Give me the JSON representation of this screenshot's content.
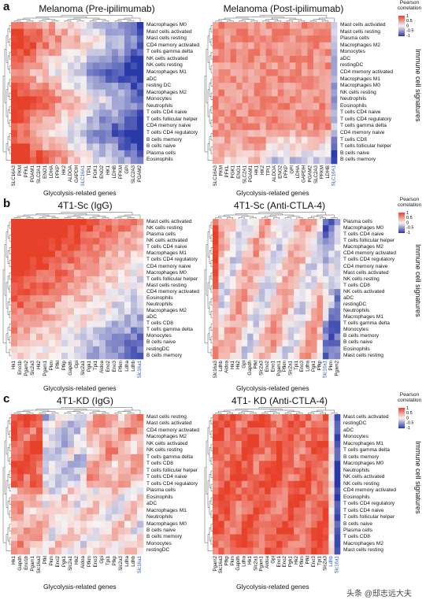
{
  "legend": {
    "title": "Pearson correlation",
    "ticks": [
      "1",
      "0.5",
      "0",
      "-0.5",
      "-1"
    ]
  },
  "side_label": "Immune cell signatures",
  "x_label": "Glycolysis-related genes",
  "watermark": "头条 @邸志远大夫",
  "colors": {
    "high": "#e8412a",
    "mid": "#f7f2f2",
    "low": "#2a39a8"
  },
  "panels": [
    {
      "letter": "a",
      "left": {
        "title": "Melanoma (Pre-ipilimumab)",
        "rows": [
          "Macrophages M0",
          "Mast cells activated",
          "Mast cells resting",
          "CD4 memory activated",
          "T cells gamma delta",
          "NK cells activated",
          "NK cells resting",
          "Macrophages M1",
          "aDC",
          "resting DC",
          "Macrophages M2",
          "Monocytes",
          "Neutrophils",
          "T cells CD4 naive",
          "T cells follicular helper",
          "CD4 memory naive",
          "T cells CD4 regulatory",
          "B cells memory",
          "B cells naive",
          "Plasma cells",
          "Eosinophils"
        ],
        "cols": [
          "SLC16A3",
          "PKM",
          "PFKL",
          "PGAM1",
          "SLC2A1",
          "ENO1",
          "LDHA",
          "PFKP",
          "HK2",
          "ALDOA",
          "GAPDH",
          "SLC16A1",
          "TPI1",
          "PGK1",
          "ENO2",
          "HK1",
          "LDHB",
          "PFKM",
          "GPI",
          "SLC2A3",
          "PGAM2"
        ]
      },
      "right": {
        "title": "Melanoma (Post-ipilimumab)",
        "rows": [
          "Mast cells activated",
          "Mast cells resting",
          "Plasma cells",
          "Macrophages M2",
          "Monocytes",
          "aDC",
          "restingDC",
          "CD4 memory activated",
          "Macrophages M1",
          "Macrophages M0",
          "NK cells resting",
          "Neutrophils",
          "Eosinophils",
          "T cells CD4 naive",
          "T cells CD4 regulatory",
          "T cells gamma delta",
          "CD4 memory naive",
          "T cells CD8",
          "T cells follicular helper",
          "B cells naive",
          "B cells memory"
        ],
        "cols": [
          "SLC16A3",
          "PKM",
          "PFKL",
          "PGK1",
          "ENO1",
          "SLC2A1",
          "PGAM1",
          "HK1",
          "HK2",
          "TPI1",
          "ALDOA",
          "ENO2",
          "PFKP",
          "GPI",
          "LDHA",
          "GAPDH",
          "PGAM2",
          "SLC2A3",
          "PFKM",
          "LDHB",
          "SLC16A1"
        ]
      },
      "ylim_note": ""
    },
    {
      "letter": "b",
      "left": {
        "title": "4T1-Sc (IgG)",
        "rows": [
          "Mast cells activated",
          "NK cells resting",
          "Plasma cells",
          "NK cells activated",
          "T cells CD4 naive",
          "Macrophages M1",
          "T cells CD4 regulatory",
          "CD4 memory naive",
          "Macrophages M0",
          "T cells follicular helper",
          "Mast cells resting",
          "CD4 memory activated",
          "Eosinophils",
          "Neutrophils",
          "Macrophages M2",
          "aDC",
          "T cells CD8",
          "T cells gamma delta",
          "Monocytes",
          "B cells naive",
          "restingDC",
          "B cells memory"
        ],
        "cols": [
          "Hk1",
          "Eno1b",
          "Pgam2",
          "Slc2a3",
          "Hk2",
          "Pgam1",
          "Pkm",
          "Pfkl",
          "Pfkp",
          "Gapdh",
          "Gpi",
          "Slc2a1",
          "Pgk1",
          "Tpi1",
          "Aldoa",
          "Eno2",
          "Eno3",
          "Pfkm",
          "Ldha",
          "Ldhb",
          "Slc16a1"
        ]
      },
      "right": {
        "title": "4T1-Sc (Anti-CTLA-4)",
        "rows": [
          "Plasma cells",
          "Macrophages M0",
          "T cells CD4 naive",
          "T cells follicular helper",
          "Macrophages M2",
          "CD4 memory activated",
          "T cells CD4 regulatory",
          "CD4 memory naive",
          "Mast cells activated",
          "NK cells resting",
          "T cells CD8",
          "NK cells activated",
          "aDC",
          "restingDC",
          "Neutrophils",
          "Macrophages M1",
          "T cells gamma delta",
          "Monocytes",
          "B cells memory",
          "B cells naive",
          "Eosinophils",
          "Mast cells resting"
        ],
        "cols": [
          "Slc16a3",
          "Ldhb",
          "Aldoa",
          "Hk1",
          "Hk2",
          "Gpi",
          "Gapdh",
          "Pfkl",
          "Slc2a3",
          "Eno2",
          "Eno1",
          "Pgam1",
          "Pfkm",
          "Slc2a1",
          "Tpi1",
          "Eno3",
          "Ldha",
          "Pgk1",
          "Pfkp",
          "Slc16a1",
          "Pkm",
          "Pgam2"
        ]
      }
    },
    {
      "letter": "c",
      "left": {
        "title": "4T1-KD (IgG)",
        "rows": [
          "Mast cells resting",
          "Mast cells activated",
          "CD4 memory activated",
          "Macrophages M2",
          "NK cells activated",
          "NK cells resting",
          "T cells gamma delta",
          "T cells CD8",
          "T cells follicular helper",
          "T cells CD4 naive",
          "T cells CD4 regulatory",
          "Plasma cells",
          "Eosinophils",
          "aDC",
          "Macrophages M1",
          "Neutrophils",
          "Macrophages M0",
          "B cells naive",
          "B cells memory",
          "Monocytes",
          "restingDC"
        ],
        "cols": [
          "Hk1",
          "Gapdh",
          "Eno1b",
          "Pgam1",
          "Slc16a3",
          "Pfkl",
          "Pkm",
          "Eno2",
          "Pgk1",
          "Slc2a1",
          "Hk2",
          "Aldoa",
          "Pfkm",
          "Eno3",
          "Gpi",
          "Tpi1",
          "Pfkp",
          "Slc2a3",
          "Ldha",
          "Ldhb",
          "Slc16a1"
        ]
      },
      "right": {
        "title": "4T1- KD (Anti-CTLA-4)",
        "rows": [
          "Mast cells activated",
          "restingDC",
          "aDC",
          "Monocytes",
          "Macrophages M1",
          "T cells gamma delta",
          "B cells memory",
          "Macrophages M0",
          "Neutrophils",
          "NK cells activated",
          "NK cells resting",
          "CD4 memory activated",
          "Eosinophils",
          "T cells CD4 regulatory",
          "T cells CD4 naive",
          "T cells follicular helper",
          "B cells naive",
          "Plasma cells",
          "T cells CD8",
          "Macrophages M2",
          "Mast cells resting"
        ],
        "cols": [
          "Pgam2",
          "Slc16a3",
          "Pfkp",
          "Pkm",
          "Gapdh",
          "Ldha",
          "Hk1",
          "Slc2a1",
          "Pgam1",
          "Aldoa",
          "Gpi",
          "Eno1",
          "Eno2",
          "Pgk1",
          "Hk2",
          "Pfkm",
          "Pfkl",
          "Eno3",
          "Tpi1",
          "Slc2a3",
          "Ldhb",
          "Slc16a1"
        ]
      }
    }
  ],
  "chart_data": [
    {
      "type": "heatmap",
      "title": "Melanoma (Pre-ipilimumab)",
      "xlabel": "Glycolysis-related genes",
      "ylabel": "Immune cell signatures",
      "value_range": [
        -1,
        1
      ],
      "pattern": "red-left-blue-right",
      "blue_labeled_cols": [
        "SLC16A1"
      ]
    },
    {
      "type": "heatmap",
      "title": "Melanoma (Post-ipilimumab)",
      "xlabel": "Glycolysis-related genes",
      "ylabel": "Immune cell signatures",
      "value_range": [
        -1,
        1
      ],
      "pattern": "mostly-red-blue-bottom",
      "blue_labeled_cols": [
        "SLC16A1"
      ]
    },
    {
      "type": "heatmap",
      "title": "4T1-Sc (IgG)",
      "xlabel": "Glycolysis-related genes",
      "ylabel": "Immune cell signatures",
      "value_range": [
        -1,
        1
      ],
      "pattern": "red-topleft-blue-bottomright",
      "blue_labeled_cols": [
        "Slc16a1"
      ]
    },
    {
      "type": "heatmap",
      "title": "4T1-Sc (Anti-CTLA-4)",
      "xlabel": "Glycolysis-related genes",
      "ylabel": "Immune cell signatures",
      "value_range": [
        -1,
        1
      ],
      "pattern": "mixed-pale",
      "blue_labeled_cols": [
        "Slc16a1"
      ]
    },
    {
      "type": "heatmap",
      "title": "4T1-KD (IgG)",
      "xlabel": "Glycolysis-related genes",
      "ylabel": "Immune cell signatures",
      "value_range": [
        -1,
        1
      ],
      "pattern": "block-red-left",
      "blue_labeled_cols": [
        "Slc16a1"
      ]
    },
    {
      "type": "heatmap",
      "title": "4T1- KD (Anti-CTLA-4)",
      "xlabel": "Glycolysis-related genes",
      "ylabel": "Immune cell signatures",
      "value_range": [
        -1,
        1
      ],
      "pattern": "strong-red-blue-right-col",
      "blue_labeled_cols": [
        "Ldhb",
        "Slc16a1"
      ]
    }
  ]
}
